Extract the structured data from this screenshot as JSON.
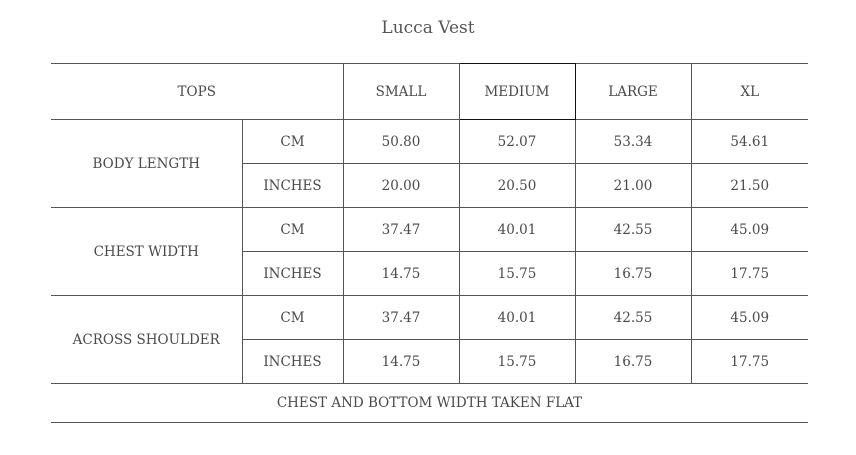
{
  "title": "Lucca Vest",
  "header": {
    "category": "TOPS",
    "sizes": [
      "SMALL",
      "MEDIUM",
      "LARGE",
      "XL"
    ]
  },
  "rows": [
    {
      "label": "BODY LENGTH",
      "cm": [
        "50.80",
        "52.07",
        "53.34",
        "54.61"
      ],
      "inches": [
        "20.00",
        "20.50",
        "21.00",
        "21.50"
      ]
    },
    {
      "label": "CHEST WIDTH",
      "cm": [
        "37.47",
        "40.01",
        "42.55",
        "45.09"
      ],
      "inches": [
        "14.75",
        "15.75",
        "16.75",
        "17.75"
      ]
    },
    {
      "label": "ACROSS SHOULDER",
      "cm": [
        "37.47",
        "40.01",
        "42.55",
        "45.09"
      ],
      "inches": [
        "14.75",
        "15.75",
        "16.75",
        "17.75"
      ]
    }
  ],
  "units": {
    "cm": "CM",
    "inches": "INCHES"
  },
  "footer": "CHEST AND BOTTOM WIDTH TAKEN FLAT"
}
